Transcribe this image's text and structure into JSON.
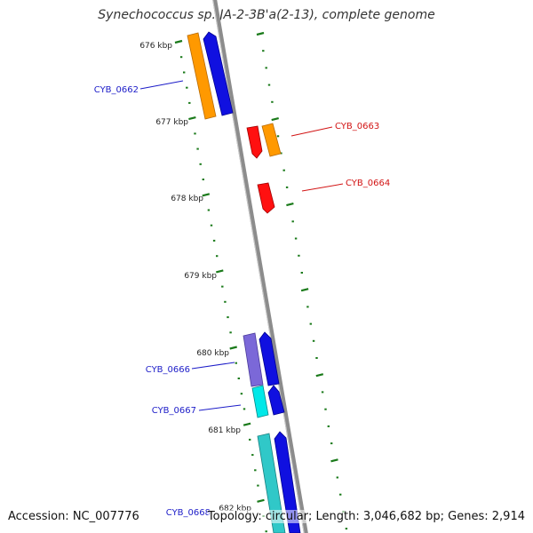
{
  "title": "Synechococcus sp. JA-2-3B'a(2-13), complete genome",
  "footer": {
    "accession": "Accession: NC_007776",
    "summary": "Topology: circular; Length: 3,046,682 bp; Genes: 2,914"
  },
  "colors": {
    "backbone": "#8c8c8c",
    "tick": "#1a7a1a",
    "forward_gene_label": "#1c1cc8",
    "reverse_gene_label": "#d21414",
    "blue_cds": "#1010e0",
    "orange_cds": "#ff9900",
    "red_cds": "#ff1010",
    "purple_cds": "#7b68d8",
    "cyan_cds": "#00e0e0",
    "teal_cds": "#30c8c8"
  },
  "ticks": [
    {
      "label": "676 kbp"
    },
    {
      "label": "677 kbp"
    },
    {
      "label": "678 kbp"
    },
    {
      "label": "679 kbp"
    },
    {
      "label": "680 kbp"
    },
    {
      "label": "681 kbp"
    },
    {
      "label": "682 kbp"
    }
  ],
  "gene_labels": [
    {
      "name": "CYB_0662",
      "strand": "forward"
    },
    {
      "name": "CYB_0663",
      "strand": "reverse"
    },
    {
      "name": "CYB_0664",
      "strand": "reverse"
    },
    {
      "name": "CYB_0666",
      "strand": "forward"
    },
    {
      "name": "CYB_0667",
      "strand": "forward"
    },
    {
      "name": "CYB_0668",
      "strand": "forward"
    }
  ]
}
